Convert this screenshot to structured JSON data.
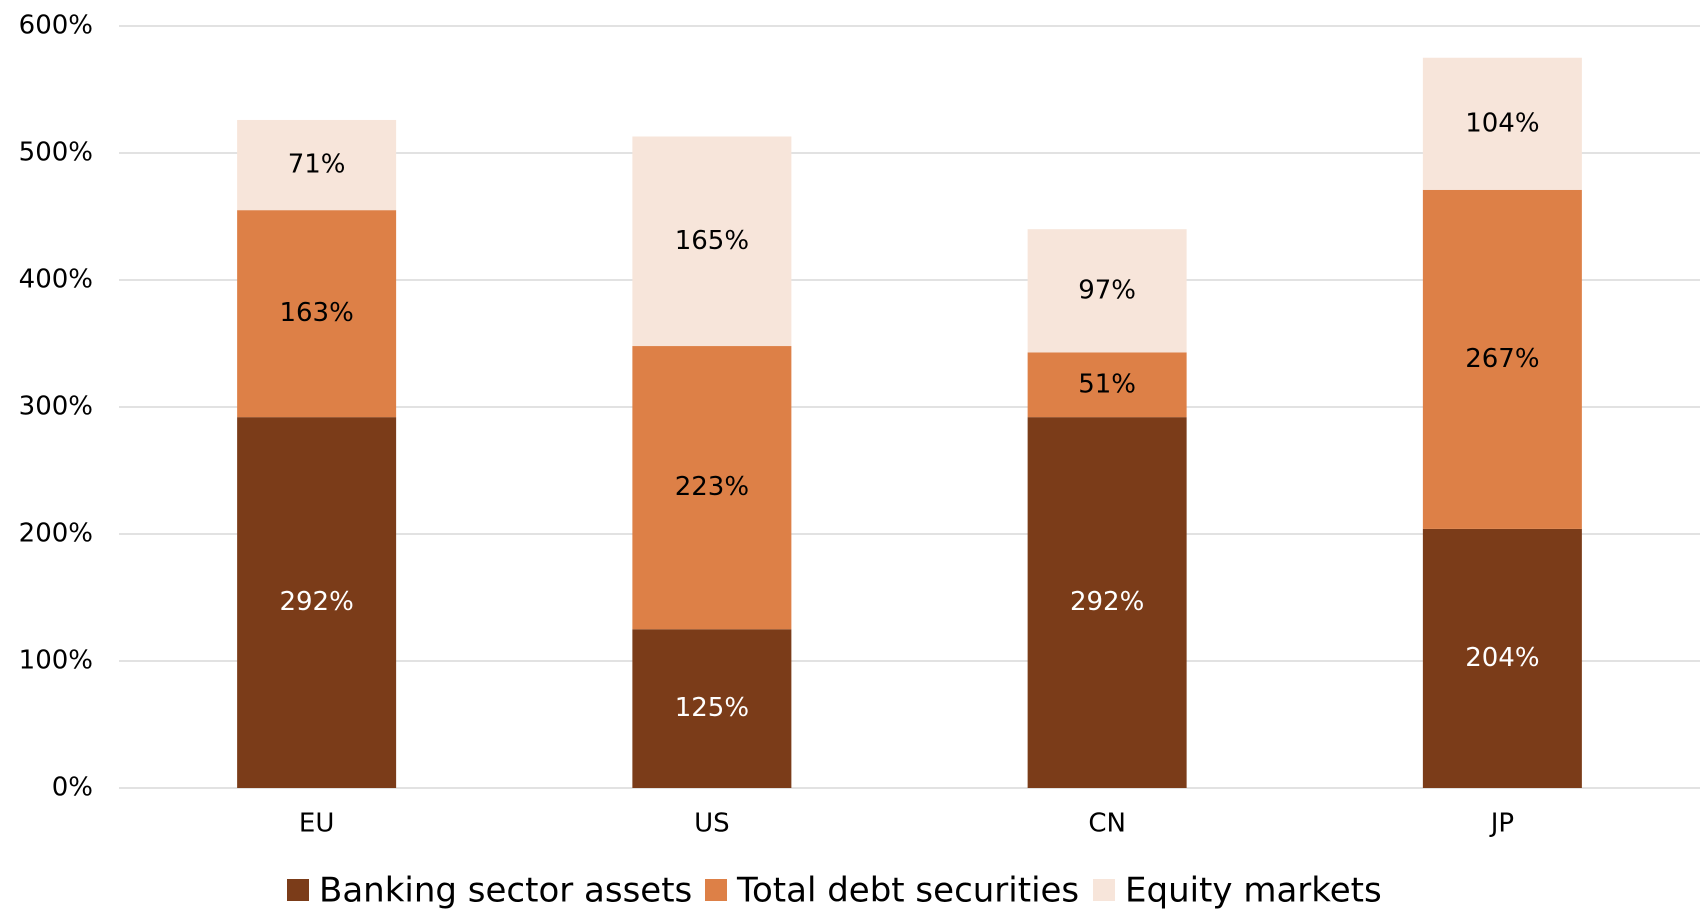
{
  "chart_data": {
    "type": "stacked_bar",
    "categories": [
      "EU",
      "US",
      "CN",
      "JP"
    ],
    "series": [
      {
        "name": "Banking sector assets",
        "color": "#7b3c19",
        "label_color": "#ffffff",
        "values": [
          292,
          125,
          292,
          204
        ],
        "value_labels": [
          "292%",
          "125%",
          "292%",
          "204%"
        ]
      },
      {
        "name": "Total debt securities",
        "color": "#dd8047",
        "label_color": "#000000",
        "values": [
          163,
          223,
          51,
          267
        ],
        "value_labels": [
          "163%",
          "223%",
          "51%",
          "267%"
        ]
      },
      {
        "name": "Equity markets",
        "color": "#f7e5da",
        "label_color": "#000000",
        "values": [
          71,
          165,
          97,
          104
        ],
        "value_labels": [
          "71%",
          "165%",
          "97%",
          "104%"
        ]
      }
    ],
    "ylim": [
      0,
      600
    ],
    "yticks": [
      {
        "value": 0,
        "label": "0%"
      },
      {
        "value": 100,
        "label": "100%"
      },
      {
        "value": 200,
        "label": "200%"
      },
      {
        "value": 300,
        "label": "300%"
      },
      {
        "value": 400,
        "label": "400%"
      },
      {
        "value": 500,
        "label": "500%"
      },
      {
        "value": 600,
        "label": "600%"
      }
    ],
    "grid": true,
    "legend": "bottom"
  }
}
